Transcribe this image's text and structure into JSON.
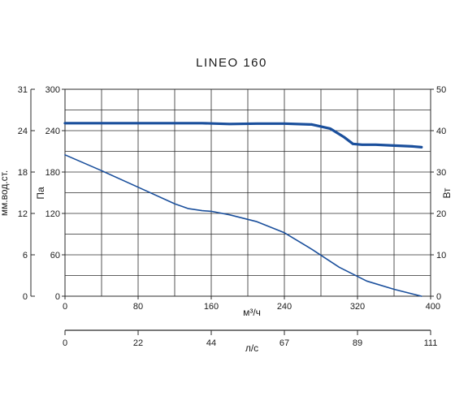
{
  "chart_data": {
    "type": "line",
    "title": "LINEO 160",
    "grid": true,
    "x_primary": {
      "label": "м³/ч",
      "range": [
        0,
        400
      ],
      "ticks": [
        "0",
        "80",
        "160",
        "240",
        "320",
        "400"
      ]
    },
    "x_secondary": {
      "label": "л/с",
      "range": [
        0,
        111
      ],
      "ticks": [
        "0",
        "22",
        "44",
        "67",
        "89",
        "111"
      ]
    },
    "y_primary": {
      "label": "Па",
      "range": [
        0,
        300
      ],
      "ticks": [
        "0",
        "60",
        "120",
        "180",
        "240",
        "300"
      ]
    },
    "y_left_outer": {
      "label": "мм.вод.ст.",
      "range": [
        0,
        31
      ],
      "ticks": [
        "0",
        "6",
        "12",
        "18",
        "24",
        "31"
      ]
    },
    "y_right": {
      "label": "Вт",
      "range": [
        0,
        50
      ],
      "ticks": [
        "0",
        "10",
        "20",
        "30",
        "40",
        "50"
      ]
    },
    "series": [
      {
        "axis": "right",
        "color": "#1a4f9c",
        "x": [
          0,
          40,
          80,
          120,
          150,
          180,
          210,
          240,
          270,
          290,
          305,
          315,
          325,
          340,
          360,
          380,
          390
        ],
        "y": [
          41.8,
          41.8,
          41.8,
          41.8,
          41.8,
          41.6,
          41.7,
          41.7,
          41.5,
          40.5,
          38.5,
          36.8,
          36.6,
          36.6,
          36.4,
          36.2,
          36.0
        ]
      },
      {
        "axis": "left",
        "color": "#1a4f9c",
        "x": [
          0,
          40,
          80,
          120,
          135,
          150,
          160,
          180,
          210,
          240,
          270,
          300,
          330,
          360,
          390
        ],
        "y": [
          205,
          182,
          158,
          134,
          127,
          124,
          123,
          118,
          108,
          92,
          68,
          42,
          22,
          10,
          0
        ]
      }
    ]
  }
}
